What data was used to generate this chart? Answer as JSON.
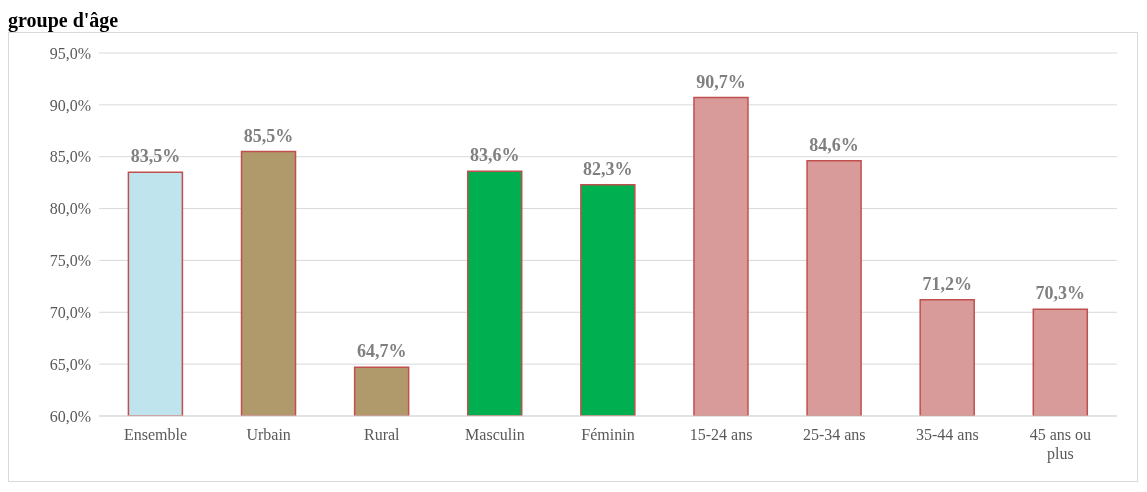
{
  "chart_data": {
    "type": "bar",
    "title": "groupe d'âge",
    "categories": [
      "Ensemble",
      "Urbain",
      "Rural",
      "Masculin",
      "Féminin",
      "15-24 ans",
      "25-34 ans",
      "35-44 ans",
      "45 ans ou plus"
    ],
    "values": [
      83.5,
      85.5,
      64.7,
      83.6,
      82.3,
      90.7,
      84.6,
      71.2,
      70.3
    ],
    "colors": [
      "#bfe4ee",
      "#b09a6c",
      "#b09a6c",
      "#00b050",
      "#00b050",
      "#d99a9a",
      "#d99a9a",
      "#d99a9a",
      "#d99a9a"
    ],
    "value_labels": [
      "83,5%",
      "85,5%",
      "64,7%",
      "83,6%",
      "82,3%",
      "90,7%",
      "84,6%",
      "71,2%",
      "70,3%"
    ],
    "ylim": [
      60,
      95
    ],
    "yticks": [
      {
        "value": 60,
        "label": "60,0%"
      },
      {
        "value": 65,
        "label": "65,0%"
      },
      {
        "value": 70,
        "label": "70,0%"
      },
      {
        "value": 75,
        "label": "75,0%"
      },
      {
        "value": 80,
        "label": "80,0%"
      },
      {
        "value": 85,
        "label": "85,0%"
      },
      {
        "value": 90,
        "label": "90,0%"
      },
      {
        "value": 95,
        "label": "95,0%"
      }
    ],
    "grid": "y"
  }
}
